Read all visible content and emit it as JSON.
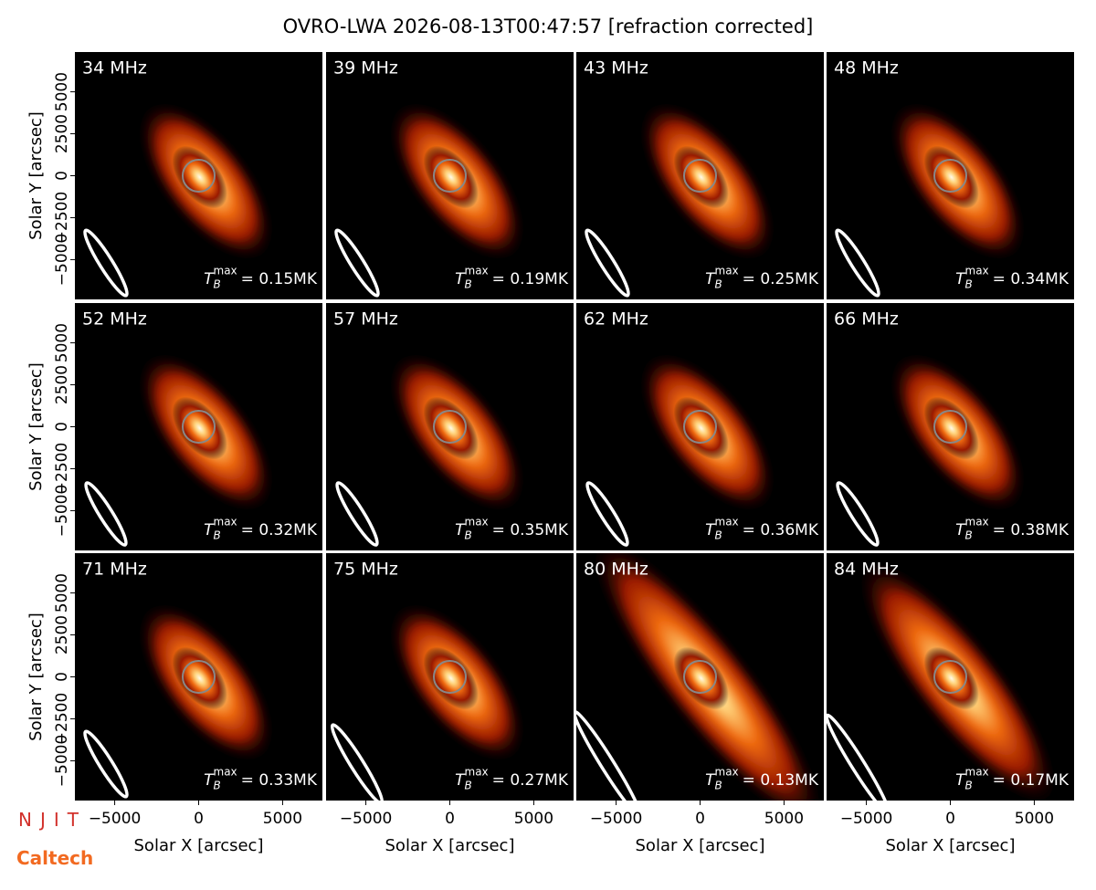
{
  "title": "OVRO-LWA 2026-08-13T00:47:57 [refraction corrected]",
  "xlabel": "Solar X [arcsec]",
  "ylabel": "Solar Y [arcsec]",
  "xlim": [
    -7370,
    7370
  ],
  "ylim": [
    -7370,
    7370
  ],
  "xticks": [
    {
      "value": -5000,
      "label": "−5000"
    },
    0,
    5000
  ],
  "yticks": [
    {
      "value": -5000,
      "label": "−5000"
    },
    {
      "value": -2500,
      "label": "−2500"
    },
    0,
    2500,
    5000
  ],
  "tb_symbol": {
    "base": "T",
    "sub": "B",
    "sup": "max"
  },
  "logos": [
    "NJIT",
    "Caltech"
  ],
  "chart_data": [
    {
      "type": "image",
      "label": "34 MHz",
      "tb_text": "= 0.15MK"
    },
    {
      "type": "image",
      "label": "39 MHz",
      "tb_text": "= 0.19MK"
    },
    {
      "type": "image",
      "label": "43 MHz",
      "tb_text": "= 0.25MK"
    },
    {
      "type": "image",
      "label": "48 MHz",
      "tb_text": "= 0.34MK"
    },
    {
      "type": "image",
      "label": "52 MHz",
      "tb_text": "= 0.32MK"
    },
    {
      "type": "image",
      "label": "57 MHz",
      "tb_text": "= 0.35MK"
    },
    {
      "type": "image",
      "label": "62 MHz",
      "tb_text": "= 0.36MK"
    },
    {
      "type": "image",
      "label": "66 MHz",
      "tb_text": "= 0.38MK"
    },
    {
      "type": "image",
      "label": "71 MHz",
      "tb_text": "= 0.33MK"
    },
    {
      "type": "image",
      "label": "75 MHz",
      "tb_text": "= 0.27MK"
    },
    {
      "type": "image",
      "label": "80 MHz",
      "tb_text": "= 0.13MK"
    },
    {
      "type": "image",
      "label": "84 MHz",
      "tb_text": "= 0.17MK"
    }
  ]
}
